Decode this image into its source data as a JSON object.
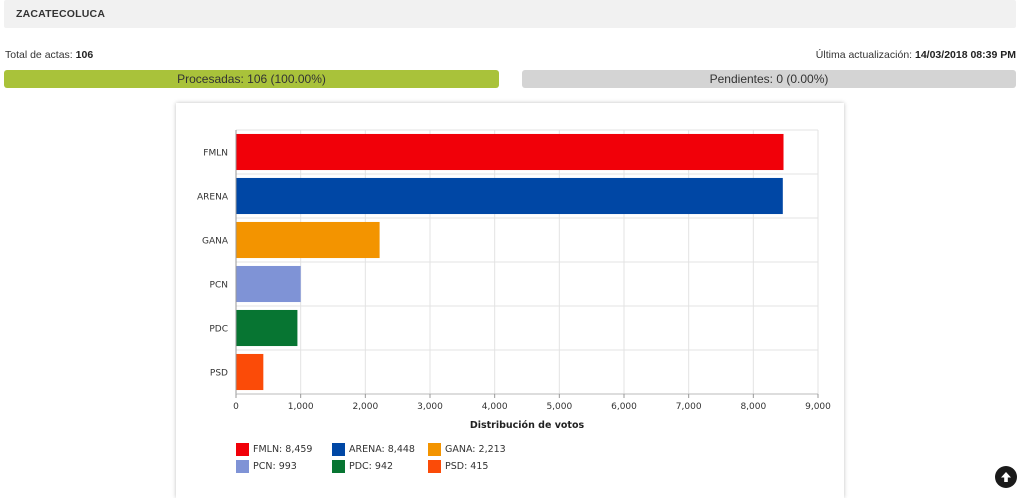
{
  "header": {
    "title": "ZACATECOLUCA"
  },
  "summary": {
    "total_label": "Total de actas:",
    "total_value": "106",
    "update_label": "Última actualización:",
    "update_value": "14/03/2018 08:39 PM"
  },
  "progress": {
    "processed_label": "Procesadas: 106 (100.00%)",
    "processed_fraction": 1.0,
    "processed_color": "#a9c23a",
    "pending_label": "Pendientes: 0 (0.00%)",
    "pending_fraction": 0.0,
    "pending_color": "#d4d4d4"
  },
  "chart_data": {
    "type": "bar",
    "orientation": "horizontal",
    "categories": [
      "FMLN",
      "ARENA",
      "GANA",
      "PCN",
      "PDC",
      "PSD"
    ],
    "values": [
      8459,
      8448,
      2213,
      993,
      942,
      415
    ],
    "colors": [
      "#f10009",
      "#0047a5",
      "#f39400",
      "#7f93d6",
      "#077532",
      "#fb4b08"
    ],
    "xlabel": "Distribución de votos",
    "xlim": [
      0,
      9000
    ],
    "xticks": [
      0,
      1000,
      2000,
      3000,
      4000,
      5000,
      6000,
      7000,
      8000,
      9000
    ],
    "xtick_labels": [
      "0",
      "1,000",
      "2,000",
      "3,000",
      "4,000",
      "5,000",
      "6,000",
      "7,000",
      "8,000",
      "9,000"
    ],
    "grid": true,
    "legend": {
      "position": "bottom-left",
      "items": [
        "FMLN: 8,459",
        "ARENA: 8,448",
        "GANA: 2,213",
        "PCN: 993",
        "PDC: 942",
        "PSD: 415"
      ]
    }
  },
  "icons": {
    "scroll_top": "arrow-up-circle-icon"
  }
}
